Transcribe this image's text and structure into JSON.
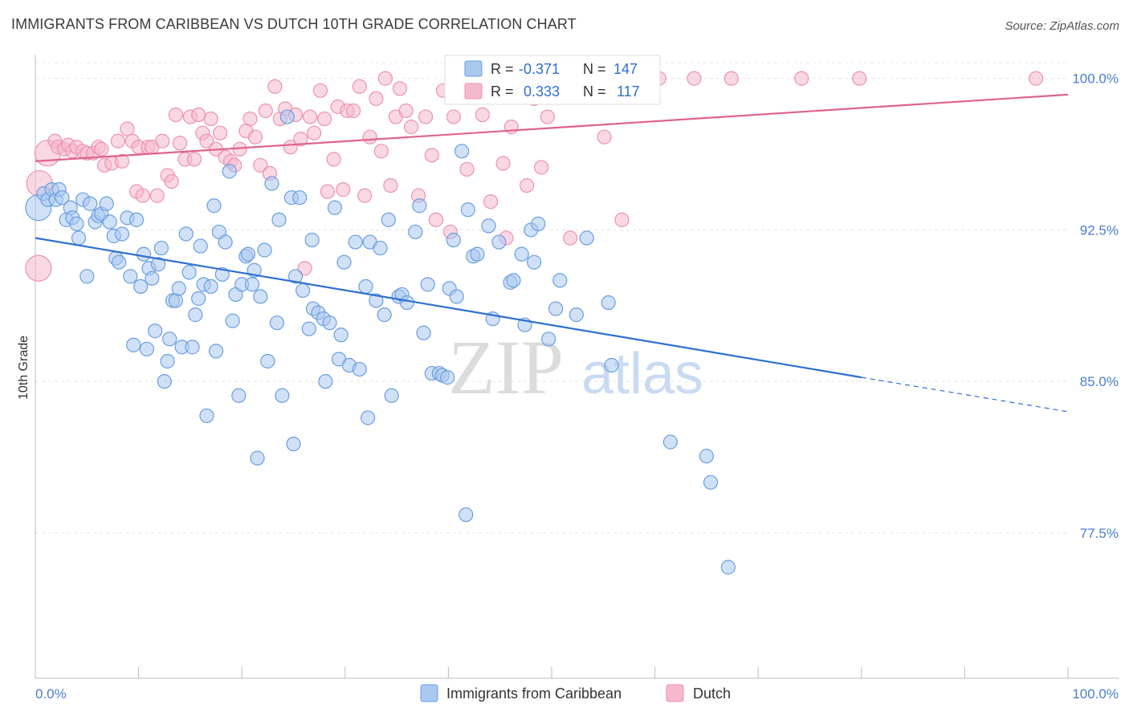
{
  "title": "IMMIGRANTS FROM CARIBBEAN VS DUTCH 10TH GRADE CORRELATION CHART",
  "source": "Source: ZipAtlas.com",
  "watermark": {
    "zip": "ZIP",
    "atlas": "atlas"
  },
  "stats": {
    "r_label": "R =",
    "n_label": "N =",
    "blue_r": "-0.371",
    "blue_n": "147",
    "pink_r": "0.333",
    "pink_n": "117"
  },
  "colors": {
    "blue_fill": "#aac8f0",
    "blue_stroke": "#6a9ee0",
    "blue_line": "#2d6fd2",
    "pink_fill": "#f6b8cc",
    "pink_stroke": "#ec92b0",
    "pink_line": "#e0628e",
    "tick_text": "#4a7cd0",
    "grid": "#e4e4e4"
  },
  "chart_data": {
    "type": "scatter",
    "title": "IMMIGRANTS FROM CARIBBEAN VS DUTCH 10TH GRADE CORRELATION CHART",
    "xlabel": "",
    "ylabel": "10th Grade",
    "x_ticks": [
      "0.0%",
      "100.0%"
    ],
    "y_ticks": [
      "100.0%",
      "92.5%",
      "85.0%",
      "77.5%"
    ],
    "y_tick_values": [
      100.0,
      92.5,
      85.0,
      77.5
    ],
    "xlim": [
      0,
      100
    ],
    "ylim": [
      70.3,
      101.5
    ],
    "grid": true,
    "legend_position": "bottom",
    "series": [
      {
        "name": "Immigrants from Caribbean",
        "color": "blue",
        "r": -0.371,
        "n": 147,
        "trend": {
          "x": [
            0,
            80,
            100
          ],
          "y": [
            92.1,
            85.2,
            83.5
          ],
          "solid_until": 80
        },
        "points": [
          [
            0.3,
            93.6
          ],
          [
            0.8,
            94.3
          ],
          [
            1.2,
            94.0
          ],
          [
            1.6,
            94.5
          ],
          [
            2.0,
            94.0
          ],
          [
            2.3,
            94.5
          ],
          [
            2.6,
            94.1
          ],
          [
            3.0,
            93.0
          ],
          [
            3.4,
            93.6
          ],
          [
            3.6,
            93.1
          ],
          [
            4.0,
            92.8
          ],
          [
            4.2,
            92.1
          ],
          [
            4.6,
            94.0
          ],
          [
            5.0,
            90.2
          ],
          [
            5.3,
            93.8
          ],
          [
            5.8,
            92.9
          ],
          [
            6.1,
            93.2
          ],
          [
            6.4,
            93.3
          ],
          [
            6.9,
            93.8
          ],
          [
            7.2,
            92.9
          ],
          [
            7.6,
            92.2
          ],
          [
            7.8,
            91.1
          ],
          [
            8.1,
            90.9
          ],
          [
            8.4,
            92.3
          ],
          [
            8.9,
            93.1
          ],
          [
            9.2,
            90.2
          ],
          [
            9.5,
            86.8
          ],
          [
            9.8,
            93.0
          ],
          [
            10.2,
            89.7
          ],
          [
            10.5,
            91.3
          ],
          [
            10.8,
            86.6
          ],
          [
            11.0,
            90.6
          ],
          [
            11.3,
            90.1
          ],
          [
            11.6,
            87.5
          ],
          [
            11.9,
            90.8
          ],
          [
            12.2,
            91.6
          ],
          [
            12.5,
            85.0
          ],
          [
            12.8,
            86.0
          ],
          [
            13.0,
            87.1
          ],
          [
            13.3,
            89.0
          ],
          [
            13.6,
            89.0
          ],
          [
            13.9,
            89.6
          ],
          [
            14.2,
            86.7
          ],
          [
            14.6,
            92.3
          ],
          [
            14.9,
            90.4
          ],
          [
            15.2,
            86.7
          ],
          [
            15.5,
            88.3
          ],
          [
            15.8,
            89.1
          ],
          [
            16.0,
            91.7
          ],
          [
            16.3,
            89.8
          ],
          [
            16.6,
            83.3
          ],
          [
            17.0,
            89.7
          ],
          [
            17.3,
            93.7
          ],
          [
            17.5,
            86.5
          ],
          [
            17.8,
            92.4
          ],
          [
            18.1,
            90.3
          ],
          [
            18.4,
            91.9
          ],
          [
            18.8,
            95.4
          ],
          [
            19.1,
            88.0
          ],
          [
            19.4,
            89.3
          ],
          [
            19.7,
            84.3
          ],
          [
            20.0,
            89.8
          ],
          [
            20.4,
            91.2
          ],
          [
            20.6,
            91.3
          ],
          [
            21.0,
            89.8
          ],
          [
            21.2,
            90.5
          ],
          [
            21.5,
            81.2
          ],
          [
            21.8,
            89.2
          ],
          [
            22.2,
            91.5
          ],
          [
            22.5,
            86.0
          ],
          [
            22.9,
            94.8
          ],
          [
            23.4,
            87.9
          ],
          [
            23.6,
            93.0
          ],
          [
            23.9,
            84.3
          ],
          [
            24.4,
            98.1
          ],
          [
            24.8,
            94.1
          ],
          [
            25.0,
            81.9
          ],
          [
            25.2,
            90.2
          ],
          [
            25.6,
            94.1
          ],
          [
            25.9,
            89.5
          ],
          [
            26.5,
            87.6
          ],
          [
            26.8,
            92.0
          ],
          [
            26.9,
            88.6
          ],
          [
            27.4,
            88.4
          ],
          [
            27.9,
            88.1
          ],
          [
            28.1,
            85.0
          ],
          [
            28.5,
            87.9
          ],
          [
            29.0,
            93.6
          ],
          [
            29.4,
            86.1
          ],
          [
            29.6,
            87.3
          ],
          [
            29.9,
            90.9
          ],
          [
            30.4,
            85.8
          ],
          [
            31.0,
            91.9
          ],
          [
            31.4,
            85.6
          ],
          [
            32.0,
            89.7
          ],
          [
            32.2,
            83.2
          ],
          [
            32.4,
            91.9
          ],
          [
            33.0,
            89.0
          ],
          [
            33.4,
            91.6
          ],
          [
            33.8,
            88.3
          ],
          [
            34.2,
            93.0
          ],
          [
            34.5,
            84.3
          ],
          [
            35.2,
            89.2
          ],
          [
            35.5,
            89.3
          ],
          [
            36.0,
            88.9
          ],
          [
            36.8,
            92.4
          ],
          [
            37.2,
            93.7
          ],
          [
            37.6,
            87.4
          ],
          [
            38.0,
            89.8
          ],
          [
            38.4,
            85.4
          ],
          [
            39.1,
            85.4
          ],
          [
            39.4,
            85.3
          ],
          [
            39.9,
            85.2
          ],
          [
            40.1,
            89.6
          ],
          [
            40.5,
            92.0
          ],
          [
            40.8,
            89.2
          ],
          [
            41.3,
            96.4
          ],
          [
            41.7,
            78.4
          ],
          [
            41.9,
            93.5
          ],
          [
            42.4,
            91.2
          ],
          [
            42.8,
            91.3
          ],
          [
            43.9,
            92.7
          ],
          [
            44.3,
            88.1
          ],
          [
            44.9,
            91.9
          ],
          [
            46.0,
            89.9
          ],
          [
            46.3,
            90.0
          ],
          [
            47.1,
            91.3
          ],
          [
            47.4,
            87.8
          ],
          [
            48.0,
            92.5
          ],
          [
            48.3,
            90.9
          ],
          [
            48.7,
            92.8
          ],
          [
            49.7,
            87.1
          ],
          [
            50.1,
            99.9
          ],
          [
            50.4,
            88.6
          ],
          [
            50.8,
            90.0
          ],
          [
            52.4,
            88.3
          ],
          [
            53.4,
            92.1
          ],
          [
            55.5,
            88.9
          ],
          [
            55.8,
            85.8
          ],
          [
            61.5,
            82.0
          ],
          [
            65.0,
            81.3
          ],
          [
            65.4,
            80.0
          ],
          [
            67.1,
            75.8
          ]
        ]
      },
      {
        "name": "Dutch",
        "color": "pink",
        "r": 0.333,
        "n": 117,
        "trend": {
          "x": [
            0,
            100
          ],
          "y": [
            95.9,
            99.2
          ]
        },
        "points": [
          [
            0.3,
            90.6
          ],
          [
            0.4,
            94.8
          ],
          [
            1.2,
            96.3
          ],
          [
            1.9,
            96.9
          ],
          [
            2.2,
            96.6
          ],
          [
            2.8,
            96.5
          ],
          [
            3.2,
            96.7
          ],
          [
            3.6,
            96.4
          ],
          [
            4.0,
            96.6
          ],
          [
            4.6,
            96.4
          ],
          [
            5.0,
            96.3
          ],
          [
            5.6,
            96.3
          ],
          [
            6.1,
            96.6
          ],
          [
            6.4,
            96.5
          ],
          [
            6.7,
            95.7
          ],
          [
            7.4,
            95.8
          ],
          [
            8.0,
            96.9
          ],
          [
            8.4,
            95.9
          ],
          [
            8.9,
            97.5
          ],
          [
            9.4,
            96.9
          ],
          [
            9.8,
            94.4
          ],
          [
            10.0,
            96.6
          ],
          [
            10.4,
            94.2
          ],
          [
            10.9,
            96.6
          ],
          [
            11.3,
            96.6
          ],
          [
            11.8,
            94.2
          ],
          [
            12.3,
            96.9
          ],
          [
            12.8,
            95.2
          ],
          [
            13.2,
            94.9
          ],
          [
            13.6,
            98.2
          ],
          [
            14.0,
            96.8
          ],
          [
            14.5,
            96.0
          ],
          [
            15.0,
            98.1
          ],
          [
            15.4,
            96.0
          ],
          [
            15.8,
            98.2
          ],
          [
            16.2,
            97.3
          ],
          [
            16.6,
            96.9
          ],
          [
            17.0,
            98.0
          ],
          [
            17.5,
            96.5
          ],
          [
            17.9,
            97.3
          ],
          [
            18.4,
            96.1
          ],
          [
            18.9,
            95.9
          ],
          [
            19.3,
            95.7
          ],
          [
            19.8,
            96.5
          ],
          [
            20.4,
            97.4
          ],
          [
            20.8,
            98.0
          ],
          [
            21.3,
            97.1
          ],
          [
            21.8,
            95.7
          ],
          [
            22.3,
            98.4
          ],
          [
            22.7,
            95.3
          ],
          [
            23.2,
            99.6
          ],
          [
            23.7,
            98.0
          ],
          [
            24.2,
            98.5
          ],
          [
            24.7,
            96.6
          ],
          [
            25.2,
            98.2
          ],
          [
            25.7,
            97.0
          ],
          [
            26.1,
            90.6
          ],
          [
            26.6,
            98.1
          ],
          [
            27.0,
            97.3
          ],
          [
            27.6,
            99.4
          ],
          [
            28.0,
            98.0
          ],
          [
            28.3,
            94.4
          ],
          [
            28.9,
            96.0
          ],
          [
            29.3,
            98.6
          ],
          [
            29.8,
            94.5
          ],
          [
            30.2,
            98.4
          ],
          [
            30.8,
            98.4
          ],
          [
            31.4,
            99.6
          ],
          [
            31.9,
            94.2
          ],
          [
            32.4,
            97.1
          ],
          [
            33.0,
            99.0
          ],
          [
            33.5,
            96.4
          ],
          [
            33.9,
            100.0
          ],
          [
            34.4,
            94.7
          ],
          [
            34.9,
            98.1
          ],
          [
            35.3,
            99.5
          ],
          [
            35.9,
            98.4
          ],
          [
            36.4,
            97.6
          ],
          [
            37.1,
            94.2
          ],
          [
            37.8,
            98.1
          ],
          [
            38.4,
            96.2
          ],
          [
            38.8,
            93.0
          ],
          [
            39.5,
            99.4
          ],
          [
            40.2,
            92.4
          ],
          [
            40.5,
            98.1
          ],
          [
            41.2,
            99.1
          ],
          [
            41.8,
            95.5
          ],
          [
            42.5,
            99.7
          ],
          [
            42.9,
            100.0
          ],
          [
            43.3,
            98.2
          ],
          [
            44.1,
            93.9
          ],
          [
            44.5,
            99.2
          ],
          [
            45.3,
            95.8
          ],
          [
            45.6,
            92.1
          ],
          [
            46.1,
            97.6
          ],
          [
            46.8,
            99.8
          ],
          [
            47.0,
            100.0
          ],
          [
            47.6,
            94.7
          ],
          [
            48.3,
            99.0
          ],
          [
            49.0,
            95.6
          ],
          [
            49.6,
            98.1
          ],
          [
            50.2,
            99.9
          ],
          [
            51.0,
            99.1
          ],
          [
            51.8,
            92.1
          ],
          [
            52.2,
            99.9
          ],
          [
            53.0,
            99.6
          ],
          [
            54.5,
            100.0
          ],
          [
            54.9,
            99.3
          ],
          [
            55.1,
            97.1
          ],
          [
            56.8,
            93.0
          ],
          [
            59.1,
            100.0
          ],
          [
            60.4,
            100.0
          ],
          [
            63.8,
            100.0
          ],
          [
            67.4,
            100.0
          ],
          [
            74.2,
            100.0
          ],
          [
            79.8,
            100.0
          ],
          [
            96.9,
            100.0
          ]
        ]
      }
    ]
  }
}
